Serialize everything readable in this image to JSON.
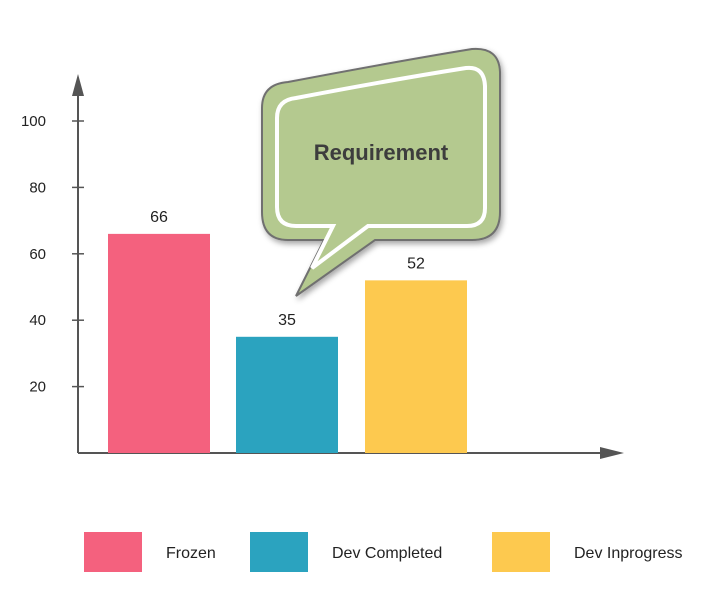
{
  "chart_data": {
    "type": "bar",
    "title": "",
    "xlabel": "",
    "ylabel": "",
    "categories": [
      "Frozen",
      "Dev Completed",
      "Dev Inprogress"
    ],
    "values": [
      66,
      35,
      52
    ],
    "ylim": [
      0,
      100
    ],
    "yticks": [
      20,
      40,
      60,
      80,
      100
    ],
    "colors": [
      "#f4617e",
      "#2ba3bf",
      "#fdc94f"
    ],
    "grid": false,
    "legend_position": "bottom",
    "legend": [
      "Frozen",
      "Dev Completed",
      "Dev Inprogress"
    ]
  },
  "callout": {
    "text": "Requirement",
    "fill": "#b4c98f",
    "stroke": "#6f6f6f"
  },
  "axis_color": "#555555"
}
